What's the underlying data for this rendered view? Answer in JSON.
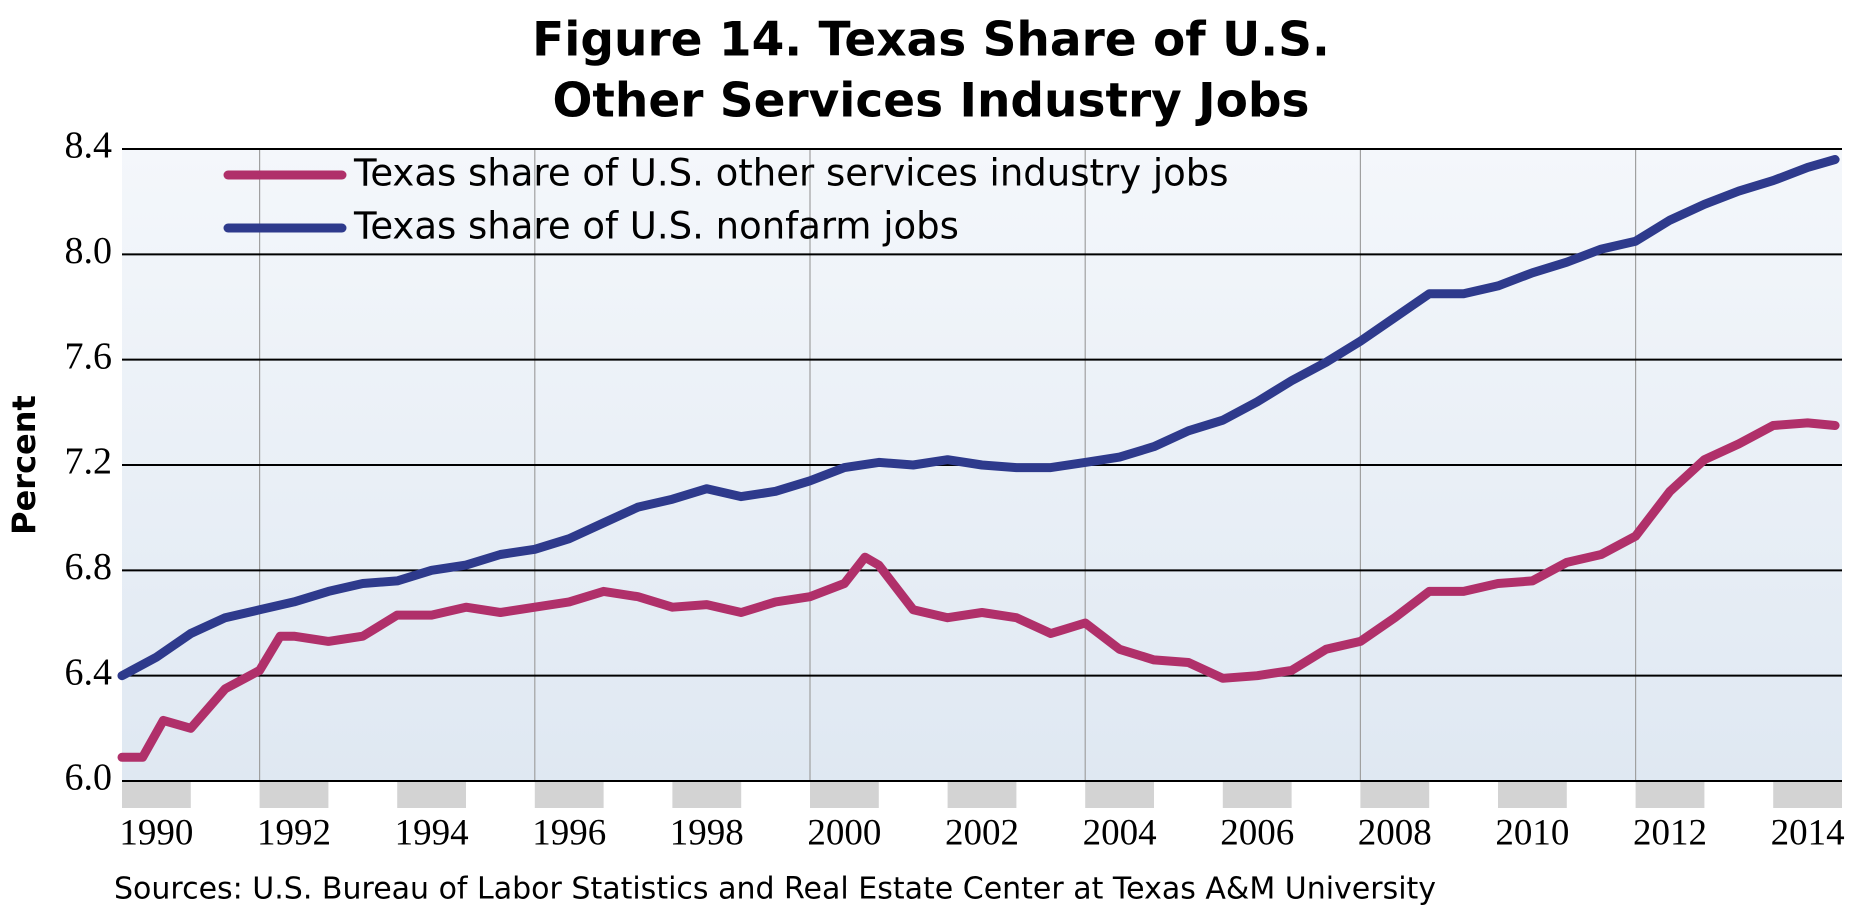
{
  "chart_data": {
    "type": "line",
    "title": [
      "Figure 14. Texas Share of U.S.",
      "Other Services Industry Jobs"
    ],
    "y_label": "Percent",
    "source": "Sources: U.S. Bureau of Labor Statistics and Real Estate Center at Texas A&M University",
    "xlim": [
      1990,
      2015
    ],
    "xticks": [
      1990,
      1992,
      1994,
      1996,
      1998,
      2000,
      2002,
      2004,
      2006,
      2008,
      2010,
      2012,
      2014
    ],
    "ylim": [
      6.0,
      8.4
    ],
    "yticks": [
      {
        "value": 6.0,
        "label": "6.0"
      },
      6.4,
      6.8,
      7.2,
      7.6,
      {
        "value": 8.0,
        "label": "8.0"
      },
      8.4
    ],
    "grid": true,
    "legend": "upper left",
    "series": [
      {
        "name": "Texas share of U.S. other services industry jobs",
        "color": "#b0306a",
        "x": [
          1990.0,
          1990.3,
          1990.6,
          1991.0,
          1991.5,
          1992.0,
          1992.3,
          1992.5,
          1993.0,
          1993.5,
          1994.0,
          1994.5,
          1995.0,
          1995.5,
          1996.0,
          1996.5,
          1997.0,
          1997.5,
          1998.0,
          1998.5,
          1999.0,
          1999.5,
          2000.0,
          2000.5,
          2000.8,
          2001.0,
          2001.5,
          2002.0,
          2002.5,
          2003.0,
          2003.5,
          2004.0,
          2004.5,
          2005.0,
          2005.5,
          2006.0,
          2006.5,
          2007.0,
          2007.5,
          2008.0,
          2008.5,
          2009.0,
          2009.5,
          2010.0,
          2010.5,
          2011.0,
          2011.5,
          2012.0,
          2012.5,
          2013.0,
          2013.5,
          2014.0,
          2014.5,
          2014.9
        ],
        "values": [
          6.09,
          6.09,
          6.23,
          6.2,
          6.35,
          6.42,
          6.55,
          6.55,
          6.53,
          6.55,
          6.63,
          6.63,
          6.66,
          6.64,
          6.66,
          6.68,
          6.72,
          6.7,
          6.66,
          6.67,
          6.64,
          6.68,
          6.7,
          6.75,
          6.85,
          6.82,
          6.65,
          6.62,
          6.64,
          6.62,
          6.56,
          6.6,
          6.5,
          6.46,
          6.45,
          6.39,
          6.4,
          6.42,
          6.5,
          6.53,
          6.62,
          6.72,
          6.72,
          6.75,
          6.76,
          6.83,
          6.86,
          6.93,
          7.1,
          7.22,
          7.28,
          7.35,
          7.36,
          7.35
        ]
      },
      {
        "name": "Texas share of U.S. nonfarm jobs",
        "color": "#2e3a8c",
        "x": [
          1990.0,
          1990.5,
          1991.0,
          1991.5,
          1992.0,
          1992.5,
          1993.0,
          1993.5,
          1994.0,
          1994.5,
          1995.0,
          1995.5,
          1996.0,
          1996.5,
          1997.0,
          1997.5,
          1998.0,
          1998.5,
          1999.0,
          1999.5,
          2000.0,
          2000.5,
          2001.0,
          2001.5,
          2002.0,
          2002.5,
          2003.0,
          2003.5,
          2004.0,
          2004.5,
          2005.0,
          2005.5,
          2006.0,
          2006.5,
          2007.0,
          2007.5,
          2008.0,
          2008.5,
          2009.0,
          2009.5,
          2010.0,
          2010.5,
          2011.0,
          2011.5,
          2012.0,
          2012.5,
          2013.0,
          2013.5,
          2014.0,
          2014.5,
          2014.9
        ],
        "values": [
          6.4,
          6.47,
          6.56,
          6.62,
          6.65,
          6.68,
          6.72,
          6.75,
          6.76,
          6.8,
          6.82,
          6.86,
          6.88,
          6.92,
          6.98,
          7.04,
          7.07,
          7.11,
          7.08,
          7.1,
          7.14,
          7.19,
          7.21,
          7.2,
          7.22,
          7.2,
          7.19,
          7.19,
          7.21,
          7.23,
          7.27,
          7.33,
          7.37,
          7.44,
          7.52,
          7.59,
          7.67,
          7.76,
          7.85,
          7.85,
          7.88,
          7.93,
          7.97,
          8.02,
          8.05,
          8.13,
          8.19,
          8.24,
          8.28,
          8.33,
          8.36
        ]
      }
    ]
  }
}
